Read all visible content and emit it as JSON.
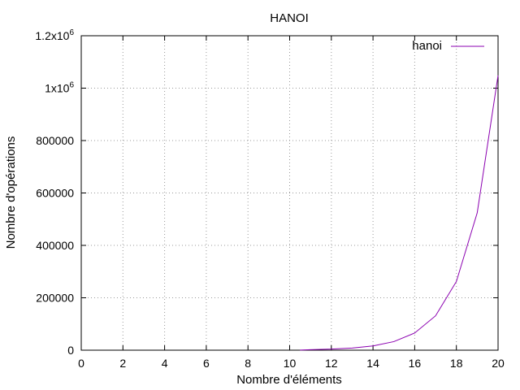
{
  "chart_data": {
    "type": "line",
    "title": "HANOI",
    "xlabel": "Nombre d'éléments",
    "ylabel": "Nombre d'opérations",
    "xlim": [
      0,
      20
    ],
    "ylim": [
      0,
      1200000
    ],
    "x_ticks": [
      "0",
      "2",
      "4",
      "6",
      "8",
      "10",
      "12",
      "14",
      "16",
      "18",
      "20"
    ],
    "y_ticks": [
      {
        "value": 0,
        "label": "0"
      },
      {
        "value": 200000,
        "label": "200000"
      },
      {
        "value": 400000,
        "label": "400000"
      },
      {
        "value": 600000,
        "label": "600000"
      },
      {
        "value": 800000,
        "label": "800000"
      },
      {
        "value": 1000000,
        "label": "1x10",
        "sup": "6"
      },
      {
        "value": 1200000,
        "label": "1.2x10",
        "sup": "6"
      }
    ],
    "grid": true,
    "legend_position": "top-right",
    "series": [
      {
        "name": "hanoi",
        "color": "#8b00b0",
        "x": [
          10.5,
          11,
          12,
          13,
          14,
          15,
          16,
          17,
          18,
          19,
          20
        ],
        "y": [
          500,
          2047,
          4095,
          8191,
          16383,
          32767,
          65535,
          131071,
          262143,
          524287,
          1048575
        ]
      }
    ]
  }
}
